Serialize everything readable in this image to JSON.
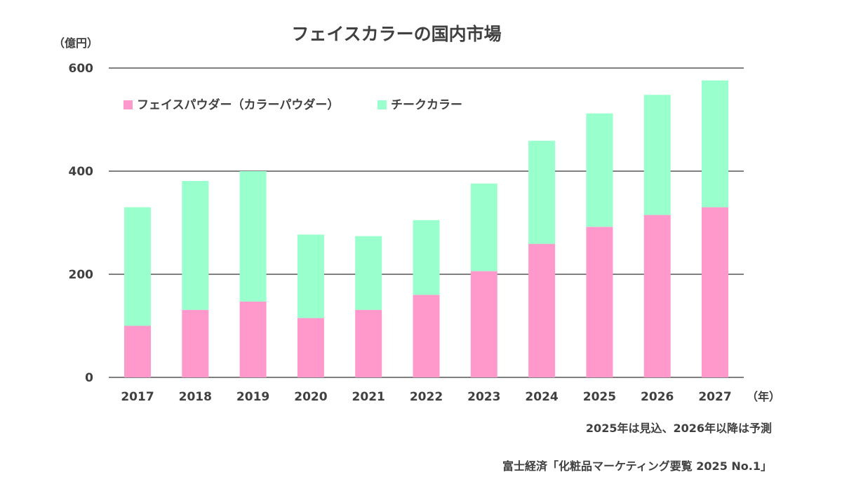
{
  "chart_data": {
    "type": "bar",
    "stacked": true,
    "title": "フェイスカラーの国内市場",
    "ylabel": "（億円）",
    "xlabel": "（年）",
    "ylim": [
      0,
      600
    ],
    "yticks": [
      0,
      200,
      400,
      600
    ],
    "grid": true,
    "legend_position": "top-left",
    "categories": [
      "2017",
      "2018",
      "2019",
      "2020",
      "2021",
      "2022",
      "2023",
      "2024",
      "2025",
      "2026",
      "2027"
    ],
    "series": [
      {
        "name": "フェイスパウダー（カラーパウダー）",
        "color": "#ff99cc",
        "values": [
          100,
          131,
          147,
          115,
          131,
          160,
          206,
          259,
          292,
          315,
          330
        ]
      },
      {
        "name": "チークカラー",
        "color": "#99ffcc",
        "values": [
          230,
          250,
          253,
          162,
          143,
          145,
          170,
          200,
          220,
          233,
          246
        ]
      }
    ],
    "notes": [
      "2025年は見込、2026年以降は予測",
      "富士経済「化粧品マーケティング要覧 2025 No.1」"
    ]
  }
}
